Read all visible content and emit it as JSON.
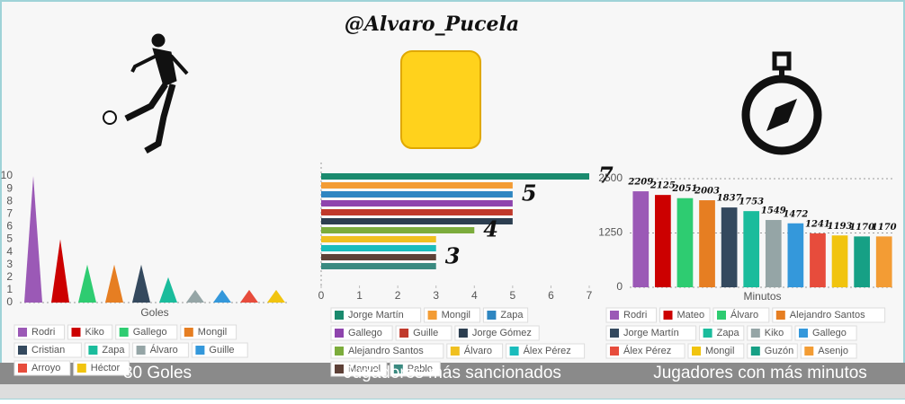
{
  "header": {
    "title": "@Alvaro_Pucela"
  },
  "chart_data": [
    {
      "type": "bar",
      "bar_shape": "triangle",
      "title": "30 Goles",
      "xlabel": "Goles",
      "categories": [
        "Rodri",
        "Kiko",
        "Gallego",
        "Mongil",
        "Cristian",
        "Zapa",
        "Álvaro",
        "Guille",
        "Arroyo",
        "Héctor"
      ],
      "values": [
        10,
        5,
        3,
        3,
        3,
        2,
        1,
        1,
        1,
        1
      ],
      "colors": [
        "#9b59b6",
        "#cc0000",
        "#2ecc71",
        "#e67e22",
        "#34495e",
        "#1abc9c",
        "#95a5a6",
        "#3498db",
        "#e74c3c",
        "#f1c40f"
      ],
      "ylim": [
        0,
        10
      ],
      "yticks": [
        0,
        1,
        2,
        3,
        4,
        5,
        6,
        7,
        8,
        9,
        10
      ],
      "grid": false
    },
    {
      "type": "barh",
      "title": "Jugadores más sancionados",
      "categories": [
        "Jorge Martín",
        "Mongil",
        "Zapa",
        "Gallego",
        "Guille",
        "Jorge Gómez",
        "Alejandro Santos",
        "Álvaro",
        "Álex Pérez",
        "Manuel",
        "Pablo"
      ],
      "values": [
        7,
        5,
        5,
        5,
        5,
        5,
        4,
        3,
        3,
        3,
        3
      ],
      "colors": [
        "#1a8a6e",
        "#f39c34",
        "#2e86c1",
        "#8e44ad",
        "#c0392b",
        "#2c3e50",
        "#7cac3c",
        "#f0c020",
        "#1abcbc",
        "#5d4037",
        "#3a8a80"
      ],
      "xlim": [
        0,
        7
      ],
      "xticks": [
        0,
        1,
        2,
        3,
        4,
        5,
        6,
        7
      ],
      "grid": false
    },
    {
      "type": "bar",
      "bar_shape": "rect",
      "title": "Jugadores con más minutos",
      "xlabel": "Minutos",
      "categories": [
        "Rodri",
        "Mateo",
        "Álvaro",
        "Alejandro Santos",
        "Jorge Martín",
        "Zapa",
        "Kiko",
        "Gallego",
        "Álex Pérez",
        "Mongil",
        "Guzón",
        "Asenjo"
      ],
      "values": [
        2209,
        2125,
        2051,
        2003,
        1837,
        1753,
        1549,
        1472,
        1241,
        1193,
        1170,
        1170
      ],
      "colors": [
        "#9b59b6",
        "#cc0000",
        "#2ecc71",
        "#e67e22",
        "#34495e",
        "#1abc9c",
        "#95a5a6",
        "#3498db",
        "#e74c3c",
        "#f1c40f",
        "#16a085",
        "#f39c34"
      ],
      "ylim": [
        0,
        2500
      ],
      "yticks": [
        0,
        1250,
        2500
      ],
      "grid": true
    }
  ]
}
